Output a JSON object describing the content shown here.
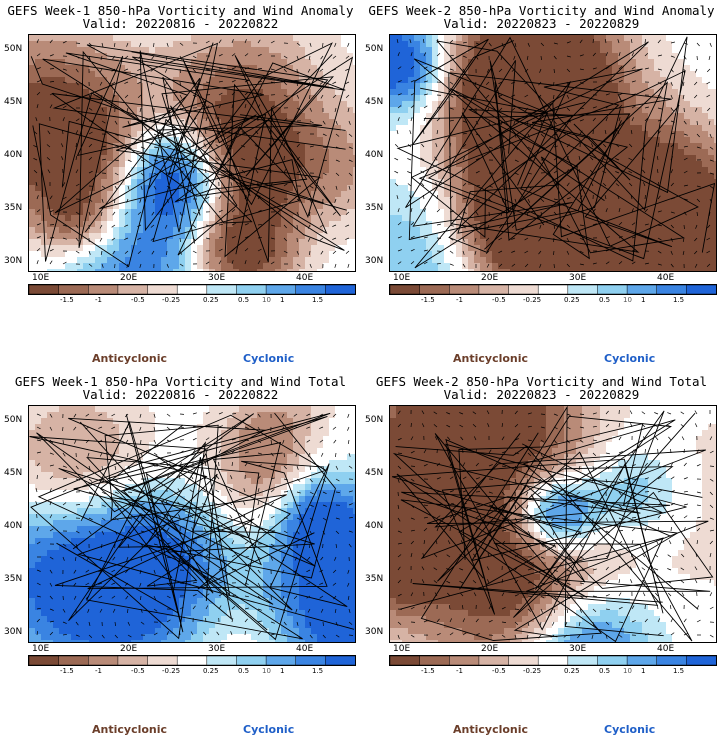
{
  "panels": [
    {
      "title": "GEFS Week-1 850-hPa Vorticity and Wind Anomaly",
      "valid": "Valid: 20220816 - 20220822",
      "seed": 11
    },
    {
      "title": "GEFS Week-2 850-hPa Vorticity and Wind Anomaly",
      "valid": "Valid: 20220823 - 20220829",
      "seed": 23
    },
    {
      "title": "GEFS Week-1 850-hPa Vorticity and Wind Total",
      "valid": "Valid: 20220816 - 20220822",
      "seed": 37
    },
    {
      "title": "GEFS Week-2 850-hPa Vorticity and Wind Total",
      "valid": "Valid: 20220823 - 20220829",
      "seed": 53
    }
  ],
  "axes": {
    "lat_labels": [
      "50N",
      "45N",
      "40N",
      "35N",
      "30N"
    ],
    "lon_labels": [
      "10E",
      "20E",
      "30E",
      "40E"
    ]
  },
  "colorbar": {
    "labels": [
      "-1.5",
      "-1",
      "-0.5",
      "-0.25",
      "0.25",
      "0.5",
      "1",
      "1.5"
    ],
    "scale_note": "10",
    "colors": [
      "#7b4a36",
      "#9c6a55",
      "#b98b78",
      "#d6b3a5",
      "#eedbd3",
      "#ffffff",
      "#bfe7f6",
      "#8fd0f0",
      "#5ea7ea",
      "#3a84e2",
      "#1f64d8"
    ]
  },
  "legend": {
    "anticyclonic": "Anticyclonic",
    "cyclonic": "Cyclonic"
  }
}
